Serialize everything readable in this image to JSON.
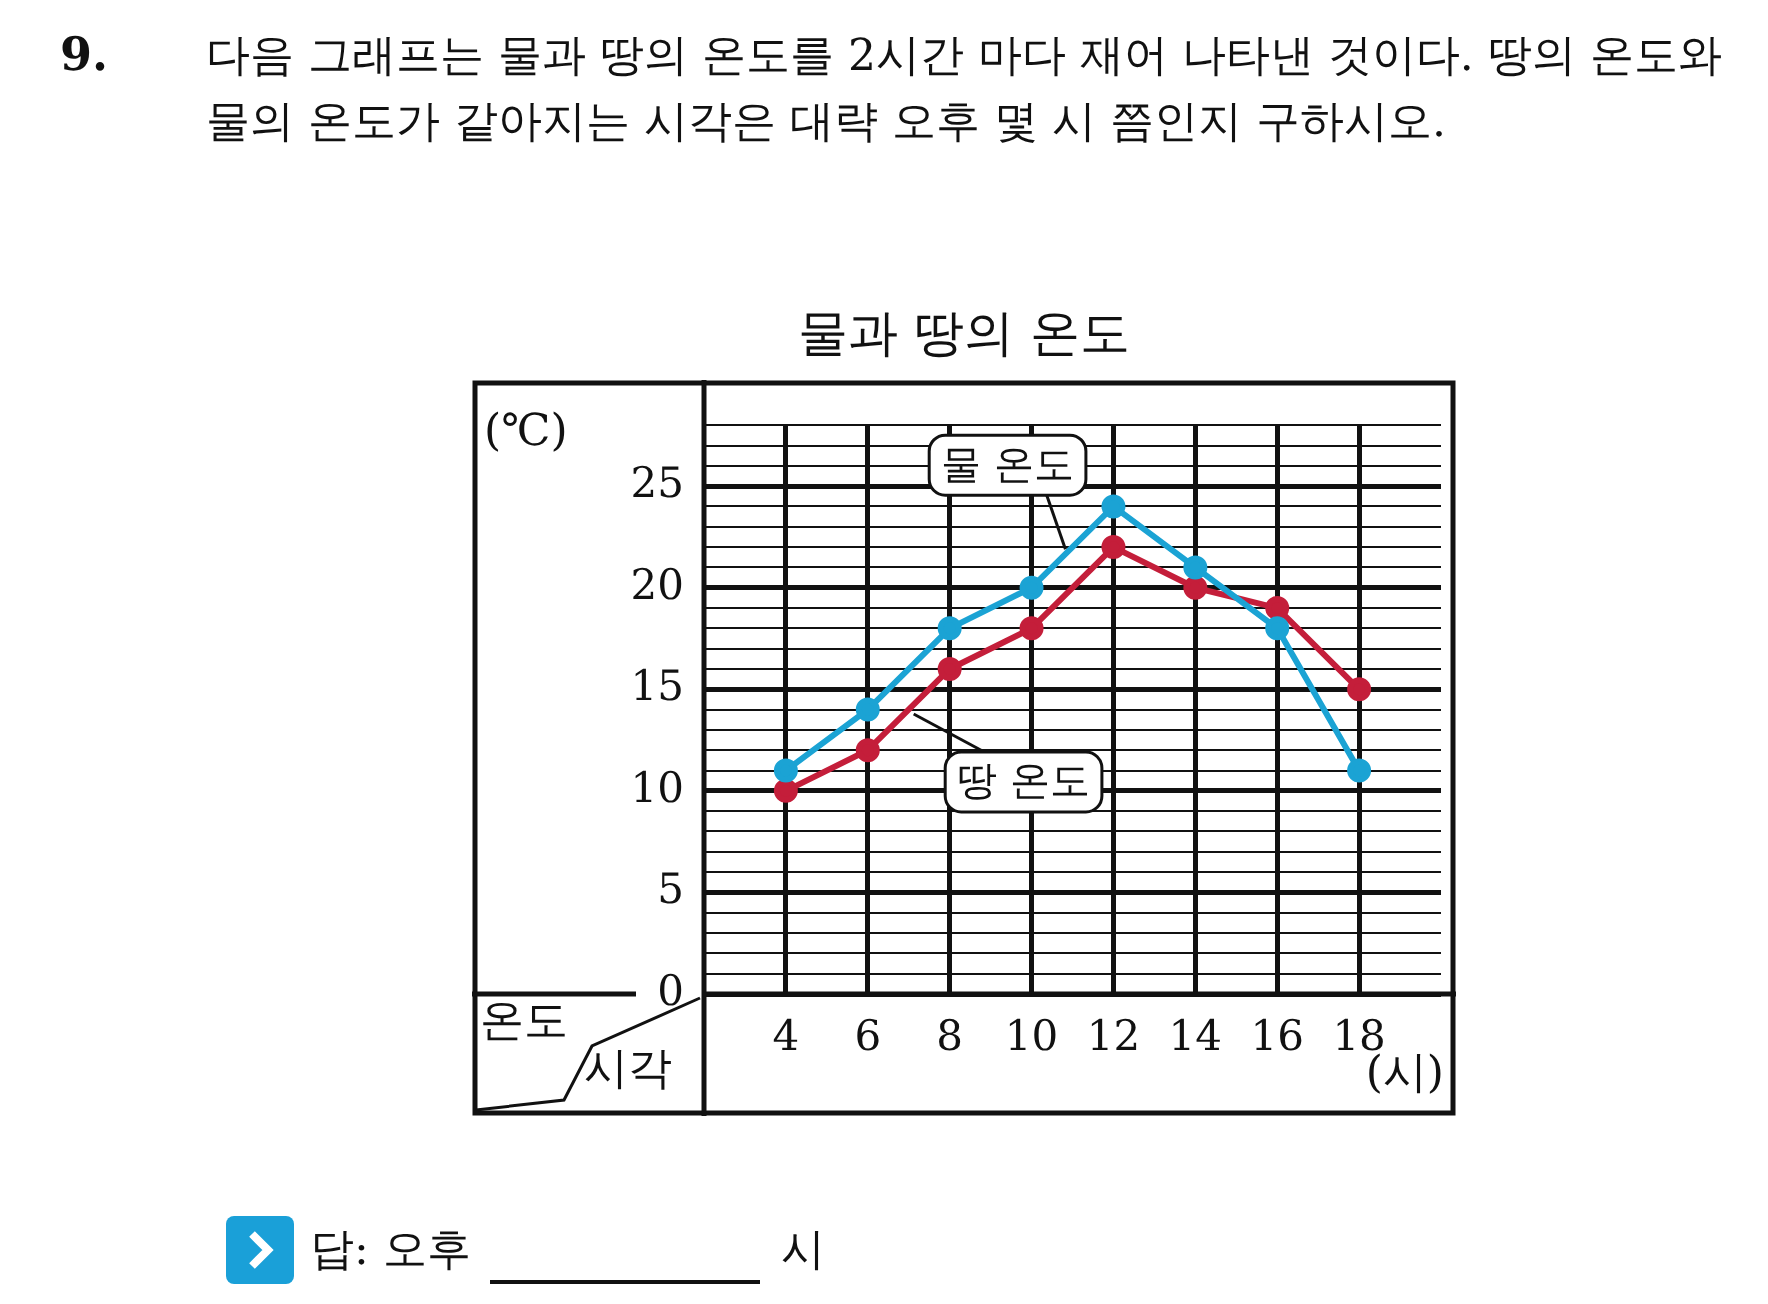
{
  "chart_data": {
    "type": "line",
    "title": "물과 땅의 온도",
    "ylabel": "(℃)",
    "xlabel": "(시)",
    "annotations": [
      "9.",
      "다음 그래프는 물과 땅의 온도를 2시간 마다 재어 나타낸 것이다. 땅의 온도와 물의 온도가 같아지는 시각은 대략 오후 몇 시 쯤인지 구하시오.",
      "온도",
      "시각",
      "답: 오후",
      "시"
    ],
    "x": [
      4,
      6,
      8,
      10,
      12,
      14,
      16,
      18
    ],
    "series": [
      {
        "name": "물 온도",
        "color": "#1ba3d4",
        "values": [
          11,
          14,
          18,
          20,
          24,
          21,
          18,
          11
        ]
      },
      {
        "name": "땅 온도",
        "color": "#c41e3a",
        "values": [
          10,
          12,
          16,
          18,
          22,
          20,
          19,
          15
        ]
      }
    ],
    "xlim": [
      2,
      20
    ],
    "xticks": [
      4,
      6,
      8,
      10,
      12,
      14,
      16,
      18
    ],
    "ylim": [
      0,
      28
    ],
    "yticks": [
      0,
      {
        "value": 1,
        "label": null
      },
      {
        "value": 2,
        "label": null
      },
      {
        "value": 3,
        "label": null
      },
      {
        "value": 4,
        "label": null
      },
      5,
      {
        "value": 6,
        "label": null
      },
      {
        "value": 7,
        "label": null
      },
      {
        "value": 8,
        "label": null
      },
      {
        "value": 9,
        "label": null
      },
      10,
      {
        "value": 11,
        "label": null
      },
      {
        "value": 12,
        "label": null
      },
      {
        "value": 13,
        "label": null
      },
      {
        "value": 14,
        "label": null
      },
      15,
      {
        "value": 16,
        "label": null
      },
      {
        "value": 17,
        "label": null
      },
      {
        "value": 18,
        "label": null
      },
      {
        "value": 19,
        "label": null
      },
      20,
      {
        "value": 21,
        "label": null
      },
      {
        "value": 22,
        "label": null
      },
      {
        "value": 23,
        "label": null
      },
      {
        "value": 24,
        "label": null
      },
      25,
      {
        "value": 26,
        "label": null
      },
      {
        "value": 27,
        "label": null
      },
      {
        "value": 28,
        "label": null
      }
    ],
    "grid": true,
    "legend": false,
    "marker": "circle",
    "line_style": "solid"
  }
}
